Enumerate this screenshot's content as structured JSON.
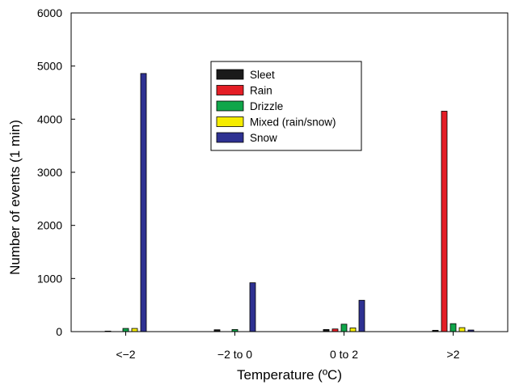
{
  "chart_data": {
    "type": "bar",
    "title": "",
    "xlabel": "Temperature (ºC)",
    "ylabel": "Number of events (1 min)",
    "ylim": [
      0,
      6000
    ],
    "yticks": [
      "0",
      "1000",
      "2000",
      "3000",
      "4000",
      "5000",
      "6000"
    ],
    "categories": [
      "<−2",
      "−2 to 0",
      "0 to 2",
      ">2"
    ],
    "grid": false,
    "legend_position": "top-center",
    "series": [
      {
        "name": "Sleet",
        "color": "#1a1a1a",
        "values": [
          10,
          35,
          40,
          25
        ]
      },
      {
        "name": "Rain",
        "color": "#e41e26",
        "values": [
          0,
          0,
          50,
          4150
        ]
      },
      {
        "name": "Drizzle",
        "color": "#10a64a",
        "values": [
          60,
          40,
          140,
          150
        ]
      },
      {
        "name": "Mixed (rain/snow)",
        "color": "#f5ec00",
        "values": [
          60,
          0,
          70,
          75
        ]
      },
      {
        "name": "Snow",
        "color": "#2e3192",
        "values": [
          4860,
          920,
          590,
          30
        ]
      }
    ]
  }
}
